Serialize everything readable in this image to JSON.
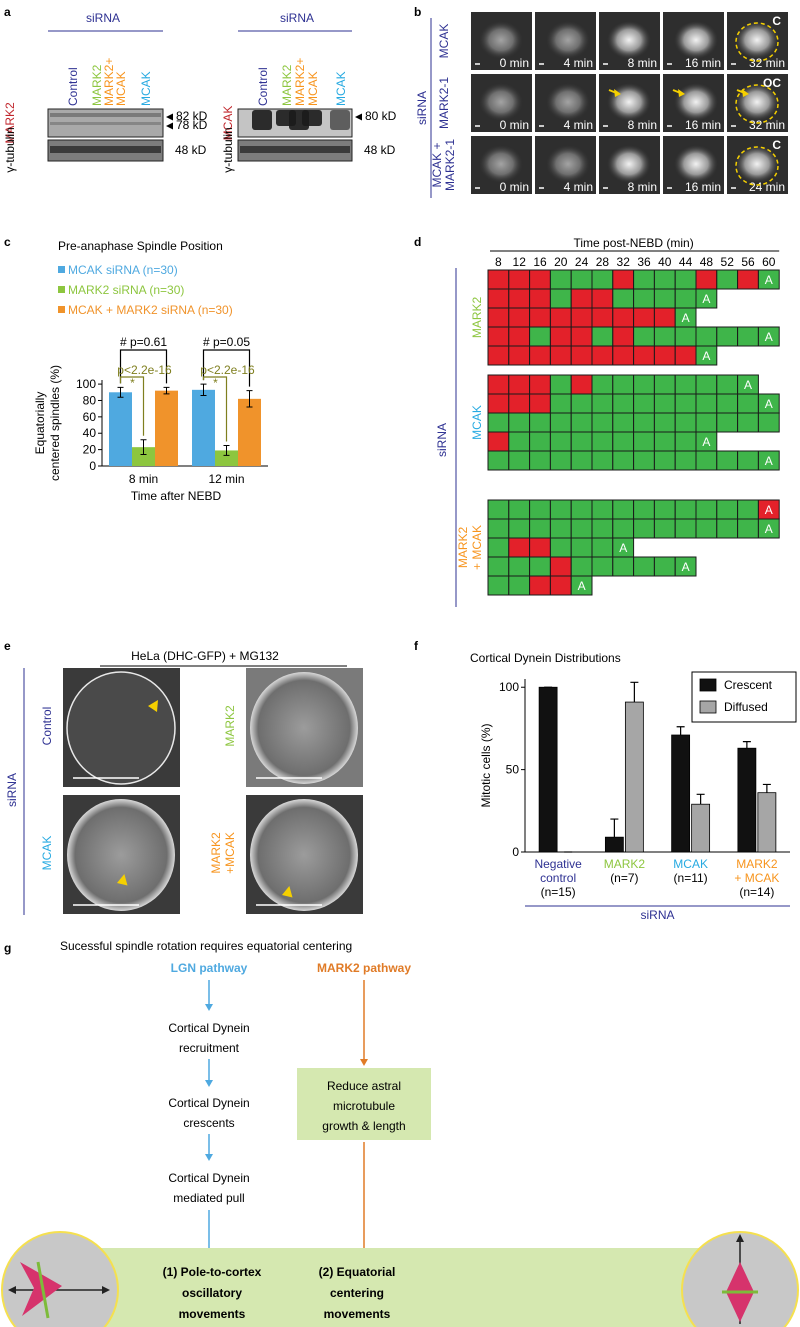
{
  "panel_labels": [
    "a",
    "b",
    "c",
    "d",
    "e",
    "f",
    "g"
  ],
  "panel_a": {
    "blots": [
      {
        "header": "siRNA",
        "lanes": [
          {
            "text": "Control",
            "color": "#2e3192"
          },
          {
            "text": "MARK2",
            "color": "#8dc63f"
          },
          {
            "text": "MARK2+",
            "color": "#f7941d"
          },
          {
            "text": "MCAK",
            "color": "#f7941d"
          },
          {
            "text": "MCAK",
            "color": "#27aae1"
          }
        ],
        "probe": "MARK2",
        "markers": [
          "82 kD",
          "78 kD"
        ],
        "loading": "γ-tubulin",
        "loading_marker": "48 kD"
      },
      {
        "header": "siRNA",
        "lanes": [
          {
            "text": "Control",
            "color": "#2e3192"
          },
          {
            "text": "MARK2",
            "color": "#8dc63f"
          },
          {
            "text": "MARK2+",
            "color": "#f7941d"
          },
          {
            "text": "MCAK",
            "color": "#f7941d"
          },
          {
            "text": "MCAK",
            "color": "#27aae1"
          }
        ],
        "probe": "MCAK",
        "markers": [
          "80 kD"
        ],
        "loading": "γ-tubulin",
        "loading_marker": "48 kD"
      }
    ]
  },
  "panel_b": {
    "group": "siRNA",
    "rows": [
      {
        "label": [
          "MCAK"
        ],
        "times": [
          "0 min",
          "4 min",
          "8 min",
          "16 min",
          "32 min"
        ],
        "phenotype": "C"
      },
      {
        "label": [
          "MARK2-1"
        ],
        "times": [
          "0 min",
          "4 min",
          "8 min",
          "16 min",
          "32 min"
        ],
        "phenotype": "OC"
      },
      {
        "label": [
          "MCAK +",
          "MARK2-1"
        ],
        "times": [
          "0 min",
          "4 min",
          "8 min",
          "16 min",
          "24 min"
        ],
        "phenotype": "C"
      }
    ]
  },
  "chart_data": [
    {
      "type": "bar",
      "title": "Pre-anaphase Spindle Position",
      "ylabel": [
        "Equatorially",
        "centered spindles (%)"
      ],
      "xlabel": "Time after NEBD",
      "categories": [
        "8 min",
        "12 min"
      ],
      "series": [
        {
          "name": "MCAK siRNA (n=30)",
          "color": "#4fa9e0",
          "values": [
            90,
            93
          ],
          "errors": [
            6,
            7
          ]
        },
        {
          "name": "MARK2 siRNA (n=30)",
          "color": "#8dc63f",
          "values": [
            23,
            19
          ],
          "errors": [
            9,
            6
          ]
        },
        {
          "name": "MCAK + MARK2 siRNA (n=30)",
          "color": "#f0932b",
          "values": [
            92,
            82
          ],
          "errors": [
            4,
            10
          ]
        }
      ],
      "ylim": [
        0,
        105
      ],
      "yticks": [
        0,
        20,
        40,
        60,
        80,
        100
      ],
      "annotations": [
        [
          "# p=0.61",
          "p<2.2e-16",
          "*"
        ],
        [
          "# p=0.05",
          "p<2.2e-16",
          "*"
        ]
      ],
      "annotation_colors": [
        "#000000",
        "#7f7f1f"
      ]
    },
    {
      "type": "bar",
      "title": "Cortical Dynein Distributions",
      "ylabel": "Mitotic cells (%)",
      "xlabel": "siRNA",
      "categories": [
        [
          "Negative",
          "control"
        ],
        [
          "MARK2"
        ],
        [
          "MCAK"
        ],
        [
          "MARK2",
          "+ MCAK"
        ]
      ],
      "category_colors": [
        "#2e3192",
        "#8dc63f",
        "#27aae1",
        "#f7941d"
      ],
      "category_counts": [
        "(n=15)",
        "(n=7)",
        "(n=11)",
        "(n=14)"
      ],
      "series": [
        {
          "name": "Crescent",
          "color": "#111111",
          "values": [
            100,
            9,
            71,
            63
          ],
          "errors": [
            0,
            11,
            5,
            4
          ]
        },
        {
          "name": "Diffused",
          "color": "#a6a6a6",
          "values": [
            0,
            91,
            29,
            36
          ],
          "errors": [
            0,
            12,
            6,
            5
          ]
        }
      ],
      "ylim": [
        0,
        105
      ],
      "yticks": [
        0,
        50,
        100
      ],
      "legend": "upper right"
    }
  ],
  "panel_d": {
    "title": "Time post-NEBD (min)",
    "times": [
      8,
      12,
      16,
      20,
      24,
      28,
      32,
      36,
      40,
      44,
      48,
      52,
      56,
      60
    ],
    "group_label": "siRNA",
    "cell_colors": {
      "R": "#e3212a",
      "G": "#3fb54a"
    },
    "groups": [
      {
        "name": [
          "MARK2"
        ],
        "color": "#8dc63f",
        "rows": [
          {
            "cells": "RRRGGGRGGGRGRG",
            "label": "A"
          },
          {
            "cells": "RRRGRRGGGGG",
            "label": "A"
          },
          {
            "cells": "RRRRRRRRRG",
            "label": "A"
          },
          {
            "cells": "RRGRRGRGGGGGGG",
            "label": "A"
          },
          {
            "cells": "RRRRRRRRRRG",
            "label": "A"
          }
        ]
      },
      {
        "name": [
          "MCAK"
        ],
        "color": "#27aae1",
        "rows": [
          {
            "cells": "RRRGRGGGGGGGG",
            "label": "A"
          },
          {
            "cells": "RRRGGGGGGGGGGG",
            "label": "A"
          },
          {
            "cells": "GGGGGGGGGGGGGG"
          },
          {
            "cells": "RGGGGGGGGGG",
            "label": "A"
          },
          {
            "cells": "GGGGGGGGGGGGGG",
            "label": "A"
          }
        ]
      },
      {
        "name": [
          "MARK2",
          "+ MCAK"
        ],
        "color": "#f7941d",
        "rows": [
          {
            "cells": "GGGGGGGGGGGGGR",
            "label": "A"
          },
          {
            "cells": "GGGGGGGGGGGGGG",
            "label": "A"
          },
          {
            "cells": "GRRGGGG",
            "label": "A"
          },
          {
            "cells": "GGGRGGGGGG",
            "label": "A"
          },
          {
            "cells": "GGRRG",
            "label": "A"
          }
        ]
      }
    ]
  },
  "panel_e": {
    "title": "HeLa (DHC-GFP) + MG132",
    "group": "siRNA",
    "images": [
      {
        "label": [
          "Control"
        ],
        "color": "#2e3192"
      },
      {
        "label": [
          "MCAK"
        ],
        "color": "#27aae1"
      },
      {
        "label": [
          "MARK2"
        ],
        "color": "#8dc63f"
      },
      {
        "label": [
          "MARK2",
          "+MCAK"
        ],
        "color": "#f7941d"
      }
    ]
  },
  "panel_g": {
    "title": "Sucessful spindle rotation requires equatorial centering",
    "lgn": "LGN pathway",
    "lgn_color": "#4fa9e0",
    "mark2": "MARK2 pathway",
    "mark2_color": "#e07b27",
    "lgn_steps": [
      [
        "Cortical Dynein",
        "recruitment"
      ],
      [
        "Cortical Dynein",
        "crescents"
      ],
      [
        "Cortical Dynein",
        "mediated pull"
      ]
    ],
    "mark2_box": [
      "Reduce astral",
      "microtubule",
      "growth & length"
    ],
    "outcomes": [
      [
        "(1) Pole-to-cortex",
        "oscillatory",
        "movements"
      ],
      [
        "(2) Equatorial",
        "centering",
        "movements"
      ]
    ]
  }
}
